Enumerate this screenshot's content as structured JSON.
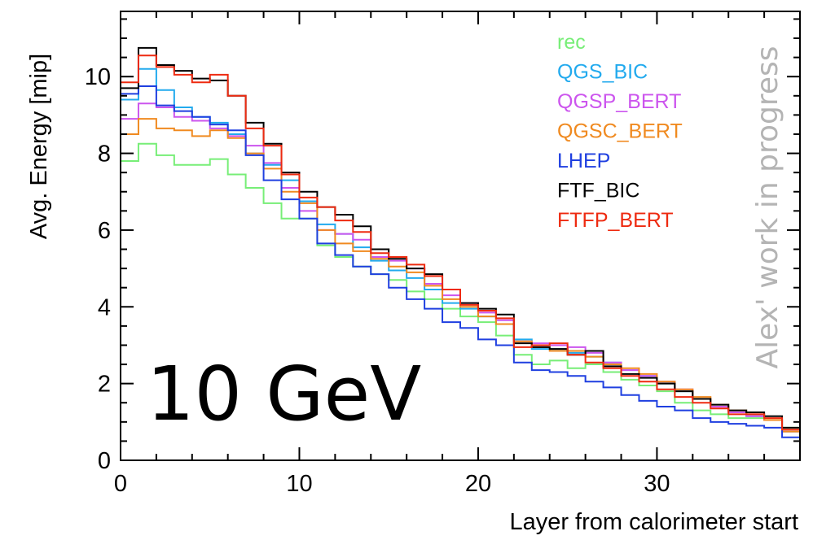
{
  "chart_data": {
    "type": "line",
    "style": "step-histogram",
    "xlabel": "Layer from calorimeter start",
    "ylabel": "Avg. Energy [mip]",
    "xlim": [
      0,
      38
    ],
    "ylim": [
      0,
      11.7
    ],
    "x_ticks": [
      0,
      10,
      20,
      30
    ],
    "y_ticks": [
      0,
      2,
      4,
      6,
      8,
      10
    ],
    "x": [
      0,
      1,
      2,
      3,
      4,
      5,
      6,
      7,
      8,
      9,
      10,
      11,
      12,
      13,
      14,
      15,
      16,
      17,
      18,
      19,
      20,
      21,
      22,
      23,
      24,
      25,
      26,
      27,
      28,
      29,
      30,
      31,
      32,
      33,
      34,
      35,
      36,
      37
    ],
    "series": [
      {
        "name": "rec",
        "color": "#77ee77",
        "values": [
          7.8,
          8.25,
          7.95,
          7.7,
          7.7,
          7.85,
          7.45,
          7.1,
          6.7,
          6.3,
          6.3,
          5.6,
          5.3,
          5.05,
          4.85,
          4.7,
          4.4,
          4.2,
          3.95,
          3.75,
          3.6,
          3.25,
          2.75,
          2.5,
          2.6,
          2.4,
          2.5,
          2.3,
          2.1,
          1.95,
          1.8,
          1.5,
          1.3,
          1.2,
          1.1,
          1.1,
          1.05,
          0.85
        ]
      },
      {
        "name": "QGS_BIC",
        "color": "#22aaee",
        "values": [
          9.4,
          10.2,
          9.65,
          9.2,
          8.95,
          8.8,
          8.5,
          8.0,
          7.7,
          7.3,
          6.75,
          6.15,
          5.9,
          5.55,
          5.2,
          4.95,
          4.75,
          4.45,
          4.1,
          3.95,
          3.75,
          3.55,
          3.15,
          2.9,
          2.9,
          2.8,
          2.7,
          2.55,
          2.35,
          2.2,
          2.0,
          1.8,
          1.6,
          1.4,
          1.25,
          1.15,
          1.05,
          0.75
        ]
      },
      {
        "name": "QGSP_BERT",
        "color": "#cc55ee",
        "values": [
          8.9,
          9.3,
          9.2,
          8.95,
          8.85,
          8.65,
          8.45,
          8.2,
          7.75,
          7.1,
          6.5,
          6.0,
          5.9,
          5.75,
          5.3,
          5.2,
          5.0,
          4.6,
          4.3,
          4.1,
          3.85,
          3.65,
          3.1,
          3.05,
          3.0,
          2.95,
          2.8,
          2.55,
          2.35,
          2.2,
          2.05,
          1.85,
          1.6,
          1.4,
          1.25,
          1.15,
          1.05,
          0.75
        ]
      },
      {
        "name": "QGSC_BERT",
        "color": "#f08a20",
        "values": [
          8.5,
          8.9,
          8.65,
          8.6,
          8.45,
          8.6,
          8.4,
          8.0,
          7.6,
          7.0,
          6.7,
          6.0,
          5.65,
          5.45,
          5.25,
          5.05,
          4.9,
          4.55,
          4.2,
          4.0,
          3.75,
          3.55,
          3.1,
          2.95,
          2.85,
          2.85,
          2.7,
          2.5,
          2.4,
          2.25,
          2.05,
          1.85,
          1.65,
          1.45,
          1.3,
          1.2,
          1.05,
          0.75
        ]
      },
      {
        "name": "LHEP",
        "color": "#1f3fe0",
        "values": [
          9.55,
          9.75,
          9.25,
          9.1,
          8.95,
          8.75,
          8.6,
          7.95,
          7.3,
          6.8,
          6.3,
          5.65,
          5.35,
          5.05,
          4.85,
          4.5,
          4.2,
          3.95,
          3.6,
          3.45,
          3.15,
          3.0,
          2.55,
          2.35,
          2.3,
          2.2,
          2.05,
          1.9,
          1.7,
          1.55,
          1.4,
          1.3,
          1.1,
          1.0,
          0.95,
          0.9,
          0.85,
          0.6
        ]
      },
      {
        "name": "FTF_BIC",
        "color": "#000000",
        "values": [
          9.7,
          10.75,
          10.3,
          10.15,
          9.95,
          9.9,
          9.5,
          8.8,
          8.25,
          7.5,
          7.0,
          6.6,
          6.4,
          6.1,
          5.5,
          5.25,
          5.0,
          4.85,
          4.45,
          4.1,
          3.95,
          3.8,
          3.05,
          2.95,
          2.9,
          2.75,
          2.85,
          2.45,
          2.25,
          2.15,
          2.0,
          1.8,
          1.6,
          1.45,
          1.3,
          1.25,
          1.15,
          0.85
        ]
      },
      {
        "name": "FTFP_BERT",
        "color": "#ee2a10",
        "values": [
          9.85,
          10.55,
          10.25,
          10.05,
          9.85,
          10.05,
          9.5,
          8.65,
          8.2,
          7.45,
          6.85,
          6.6,
          6.25,
          5.95,
          5.4,
          5.3,
          5.1,
          4.8,
          4.45,
          4.05,
          3.9,
          3.7,
          2.95,
          3.0,
          3.05,
          2.75,
          2.55,
          2.4,
          2.2,
          2.05,
          1.85,
          1.65,
          1.5,
          1.35,
          1.2,
          1.2,
          1.1,
          0.8
        ]
      }
    ],
    "legend_placement": "top-right",
    "grid": false,
    "annotations": {
      "energy_label": "10 GeV",
      "watermark": "Alex' work in progress"
    }
  }
}
